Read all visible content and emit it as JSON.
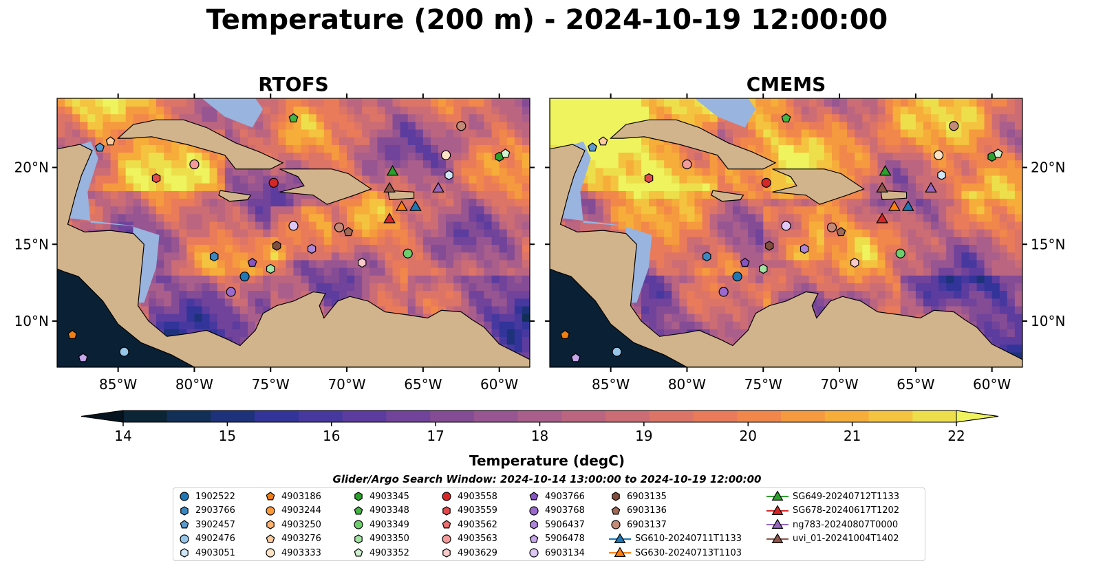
{
  "title": "Temperature (200 m) - 2024-10-19 12:00:00",
  "panels": [
    {
      "title": "RTOFS",
      "seed": 1
    },
    {
      "title": "CMEMS",
      "seed": 2
    }
  ],
  "map": {
    "lon_range": [
      -89,
      -58
    ],
    "lat_range": [
      7,
      24.5
    ],
    "x_ticks": [
      {
        "value": -85,
        "label": "85°W"
      },
      {
        "value": -80,
        "label": "80°W"
      },
      {
        "value": -75,
        "label": "75°W"
      },
      {
        "value": -70,
        "label": "70°W"
      },
      {
        "value": -65,
        "label": "65°W"
      },
      {
        "value": -60,
        "label": "60°W"
      }
    ],
    "y_ticks": [
      {
        "value": 20,
        "label": "20°N"
      },
      {
        "value": 15,
        "label": "15°N"
      },
      {
        "value": 10,
        "label": "10°N"
      }
    ],
    "colors": {
      "land": "#d2b48c",
      "shelf": "#98b4df",
      "coastline": "#000000",
      "pacific": "#0a2035"
    }
  },
  "colorbar": {
    "label": "Temperature (degC)",
    "range": [
      14,
      22
    ],
    "ticks": [
      14,
      15,
      16,
      17,
      18,
      19,
      20,
      21,
      22
    ],
    "colors": [
      "#0b2436",
      "#112f57",
      "#1d327b",
      "#32349a",
      "#47389f",
      "#5c3c9e",
      "#71439b",
      "#854c96",
      "#975592",
      "#aa5e8b",
      "#bb6580",
      "#cc6c74",
      "#dc7467",
      "#e97b5a",
      "#f1874b",
      "#f59a3e",
      "#f6ad3a",
      "#f4c33f",
      "#eddf4c"
    ],
    "over_color": "#eef35e",
    "under_color": "#04131f"
  },
  "legend": {
    "window_text": "Glider/Argo Search Window: 2024-10-14 13:00:00 to 2024-10-19 12:00:00",
    "items": [
      {
        "label": "1902522",
        "marker": "circle",
        "color": "#1f77b4"
      },
      {
        "label": "2903766",
        "marker": "hexagon",
        "color": "#3b87c0"
      },
      {
        "label": "3902457",
        "marker": "pentagon",
        "color": "#5a9bcf"
      },
      {
        "label": "4902476",
        "marker": "circle",
        "color": "#97c6e8"
      },
      {
        "label": "4903051",
        "marker": "hexagon",
        "color": "#cfe6f7"
      },
      {
        "label": "4903186",
        "marker": "pentagon",
        "color": "#ef7f12"
      },
      {
        "label": "4903244",
        "marker": "circle",
        "color": "#fb9a3c"
      },
      {
        "label": "4903250",
        "marker": "hexagon",
        "color": "#fdb46e"
      },
      {
        "label": "4903276",
        "marker": "pentagon",
        "color": "#fdcb9b"
      },
      {
        "label": "4903333",
        "marker": "circle",
        "color": "#fee2c4"
      },
      {
        "label": "4903345",
        "marker": "hexagon",
        "color": "#2ca02c"
      },
      {
        "label": "4903348",
        "marker": "pentagon",
        "color": "#42b542"
      },
      {
        "label": "4903349",
        "marker": "circle",
        "color": "#6ccd6c"
      },
      {
        "label": "4903350",
        "marker": "hexagon",
        "color": "#a2e2a2"
      },
      {
        "label": "4903352",
        "marker": "pentagon",
        "color": "#cff2cf"
      },
      {
        "label": "4903558",
        "marker": "circle",
        "color": "#d62728"
      },
      {
        "label": "4903559",
        "marker": "hexagon",
        "color": "#e34a4b"
      },
      {
        "label": "4903562",
        "marker": "pentagon",
        "color": "#ee6e70"
      },
      {
        "label": "4903563",
        "marker": "circle",
        "color": "#f59a9b"
      },
      {
        "label": "4903629",
        "marker": "hexagon",
        "color": "#f9c9cb"
      },
      {
        "label": "4903766",
        "marker": "pentagon",
        "color": "#8755c2"
      },
      {
        "label": "4903768",
        "marker": "circle",
        "color": "#9a6bcd"
      },
      {
        "label": "5906437",
        "marker": "hexagon",
        "color": "#ae86d9"
      },
      {
        "label": "5906478",
        "marker": "pentagon",
        "color": "#c7a6ea"
      },
      {
        "label": "6903134",
        "marker": "circle",
        "color": "#dcc7f5"
      },
      {
        "label": "6903135",
        "marker": "hexagon",
        "color": "#7f4e3f"
      },
      {
        "label": "6903136",
        "marker": "pentagon",
        "color": "#a06a58"
      },
      {
        "label": "6903137",
        "marker": "circle",
        "color": "#c48a78"
      },
      {
        "label": "SG610-20240711T1133",
        "marker": "triangle",
        "color": "#1f77b4"
      },
      {
        "label": "SG630-20240713T1103",
        "marker": "triangle",
        "color": "#ff7f0e"
      },
      {
        "label": "SG649-20240712T1133",
        "marker": "triangle",
        "color": "#2ca02c"
      },
      {
        "label": "SG678-20240617T1202",
        "marker": "triangle",
        "color": "#d62728"
      },
      {
        "label": "ng783-20240807T0000",
        "marker": "triangle",
        "color": "#9467bd"
      },
      {
        "label": "uvi_01-20241004T1402",
        "marker": "triangle",
        "color": "#8c564b"
      }
    ]
  },
  "observations": [
    {
      "id": "4903348",
      "lon": -73.5,
      "lat": 23.2
    },
    {
      "id": "3902457",
      "lon": -86.2,
      "lat": 21.3
    },
    {
      "id": "4903276",
      "lon": -85.5,
      "lat": 21.7
    },
    {
      "id": "4903563",
      "lon": -80.0,
      "lat": 20.2
    },
    {
      "id": "4903559",
      "lon": -82.5,
      "lat": 19.3
    },
    {
      "id": "4903558",
      "lon": -74.8,
      "lat": 19.0
    },
    {
      "id": "6903137",
      "lon": -62.5,
      "lat": 22.7
    },
    {
      "id": "4903333",
      "lon": -63.5,
      "lat": 20.8
    },
    {
      "id": "4903051",
      "lon": -63.3,
      "lat": 19.5
    },
    {
      "id": "4903345",
      "lon": -60.0,
      "lat": 20.7
    },
    {
      "id": "4903352",
      "lon": -59.6,
      "lat": 20.9
    },
    {
      "id": "6903134",
      "lon": -73.5,
      "lat": 16.2
    },
    {
      "id": "6903137",
      "lon": -70.5,
      "lat": 16.1
    },
    {
      "id": "6903136",
      "lon": -69.9,
      "lat": 15.8
    },
    {
      "id": "6903135",
      "lon": -74.6,
      "lat": 14.9
    },
    {
      "id": "5906437",
      "lon": -72.3,
      "lat": 14.7
    },
    {
      "id": "2903766",
      "lon": -78.7,
      "lat": 14.2
    },
    {
      "id": "4903766",
      "lon": -76.2,
      "lat": 13.8
    },
    {
      "id": "4903350",
      "lon": -75.0,
      "lat": 13.4
    },
    {
      "id": "4903629",
      "lon": -69.0,
      "lat": 13.8
    },
    {
      "id": "4903349",
      "lon": -66.0,
      "lat": 14.4
    },
    {
      "id": "1902522",
      "lon": -76.7,
      "lat": 12.9
    },
    {
      "id": "4903768",
      "lon": -77.6,
      "lat": 11.9
    },
    {
      "id": "4903186",
      "lon": -88.0,
      "lat": 9.1
    },
    {
      "id": "4902476",
      "lon": -84.6,
      "lat": 8.0
    },
    {
      "id": "5906478",
      "lon": -87.3,
      "lat": 7.6
    },
    {
      "id": "SG649-20240712T1133",
      "lon": -67.0,
      "lat": 19.8
    },
    {
      "id": "uvi_01-20241004T1402",
      "lon": -67.2,
      "lat": 18.7
    },
    {
      "id": "ng783-20240807T0000",
      "lon": -64.0,
      "lat": 18.7
    },
    {
      "id": "SG630-20240713T1103",
      "lon": -66.4,
      "lat": 17.5
    },
    {
      "id": "SG610-20240711T1133",
      "lon": -65.5,
      "lat": 17.5
    },
    {
      "id": "SG678-20240617T1202",
      "lon": -67.2,
      "lat": 16.7
    }
  ]
}
